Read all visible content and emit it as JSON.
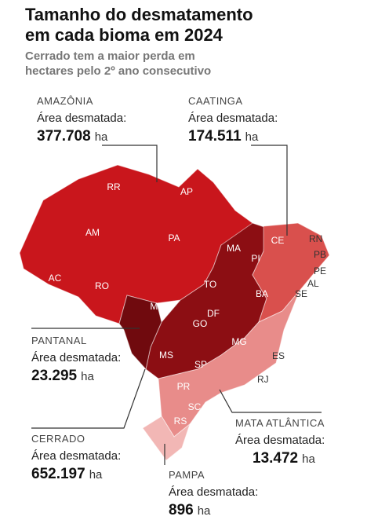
{
  "header": {
    "title": [
      "Tamanho do desmatamento",
      "em cada bioma em 2024"
    ],
    "subtitle": [
      "Cerrado tem a maior perda em",
      "hectares pelo 2º ano consecutivo"
    ]
  },
  "biomes": [
    {
      "name": "AMAZÔNIA",
      "label": "Área desmatada:",
      "value": "377.708",
      "unit": "ha"
    },
    {
      "name": "CAATINGA",
      "label": "Área desmatada:",
      "value": "174.511",
      "unit": "ha"
    },
    {
      "name": "PANTANAL",
      "label": "Área desmatada:",
      "value": "23.295",
      "unit": "ha"
    },
    {
      "name": "CERRADO",
      "label": "Área desmatada:",
      "value": "652.197",
      "unit": "ha"
    },
    {
      "name": "MATA ATLÂNTICA",
      "label": "Área desmatada:",
      "value": "13.472",
      "unit": "ha"
    },
    {
      "name": "PAMPA",
      "label": "Área desmatada:",
      "value": "896",
      "unit": "ha"
    }
  ],
  "states": [
    "RR",
    "AP",
    "AM",
    "PA",
    "MA",
    "CE",
    "RN",
    "PB",
    "PI",
    "PE",
    "AC",
    "RO",
    "TO",
    "AL",
    "SE",
    "BA",
    "MT",
    "DF",
    "GO",
    "MG",
    "ES",
    "MS",
    "SP",
    "RJ",
    "PR",
    "SC",
    "RS"
  ]
}
